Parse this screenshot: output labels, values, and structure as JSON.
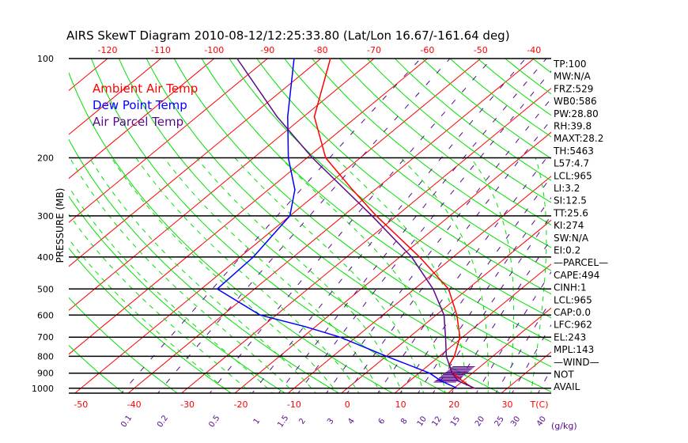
{
  "chart_data": {
    "type": "line",
    "title": "AIRS SkewT Diagram 2010-08-12/12:25:33.80 (Lat/Lon 16.67/-161.64 deg)",
    "ylabel": "PRESSURE (MB)",
    "xlabel": "T(C)",
    "mixing_label": "(g/kg)",
    "pressure_ticks": [
      100,
      200,
      300,
      400,
      500,
      600,
      700,
      800,
      900,
      1000
    ],
    "top_temp_ticks": [
      -120,
      -110,
      -100,
      -90,
      -80,
      -70,
      -60,
      -50,
      -40
    ],
    "bottom_temp_ticks": [
      -50,
      -40,
      -30,
      -20,
      -10,
      0,
      10,
      20,
      30
    ],
    "mixing_ratio_ticks": [
      0.1,
      0.2,
      0.5,
      1,
      1.5,
      2,
      3,
      4,
      6,
      8,
      10,
      12,
      15,
      20,
      25,
      30,
      40
    ],
    "legend": [
      {
        "label": "Ambient Air Temp",
        "color": "#ff0000"
      },
      {
        "label": "Dew Point Temp",
        "color": "#0000ff"
      },
      {
        "label": "Air Parcel Temp",
        "color": "#5a0a8c"
      }
    ],
    "series": [
      {
        "name": "Ambient Air Temp",
        "p": [
          100,
          150,
          200,
          250,
          300,
          400,
          500,
          600,
          700,
          800,
          850,
          900,
          950,
          1000
        ],
        "t": [
          -78.2,
          -68,
          -56.5,
          -44.2,
          -33.8,
          -16.3,
          -3.6,
          3.9,
          9.5,
          12.8,
          13.8,
          16.3,
          19.9,
          23.6
        ]
      },
      {
        "name": "Dew Point Temp",
        "p": [
          100,
          150,
          200,
          250,
          300,
          400,
          500,
          600,
          650,
          700,
          800,
          900,
          950,
          1000
        ],
        "t": [
          -85,
          -73,
          -63.5,
          -55,
          -50,
          -47.5,
          -47,
          -33,
          -22,
          -13,
          0.1,
          12,
          15.9,
          20.6
        ]
      },
      {
        "name": "Air Parcel Temp",
        "p": [
          100,
          150,
          200,
          300,
          400,
          500,
          600,
          700,
          800,
          900,
          950,
          1000
        ],
        "t": [
          -95.7,
          -75,
          -59,
          -34.6,
          -17.8,
          -6.5,
          1.5,
          6.8,
          11.3,
          16.2,
          19.1,
          23.9
        ]
      }
    ],
    "ylim": [
      1000,
      100
    ]
  },
  "indices": [
    "TP:100",
    "MW:N/A",
    "FRZ:529",
    "WB0:586",
    "PW:28.80",
    "RH:39.8",
    "MAXT:28.2",
    "TH:5463",
    "L57:4.7",
    "LCL:965",
    "LI:3.2",
    "SI:12.5",
    "TT:25.6",
    "KI:274",
    "SW:N/A",
    "EI:0.2",
    "—PARCEL—",
    "CAPE:494",
    "CINH:1",
    "LCL:965",
    "CAP:0.0",
    "LFC:962",
    "EL:243",
    "MPL:143",
    "—WIND—",
    "NOT",
    "AVAIL"
  ],
  "colors": {
    "temp": "#ff0000",
    "dew": "#0000ff",
    "parcel": "#5a0a8c",
    "adiabat": "#00e000",
    "grid": "#000000"
  }
}
